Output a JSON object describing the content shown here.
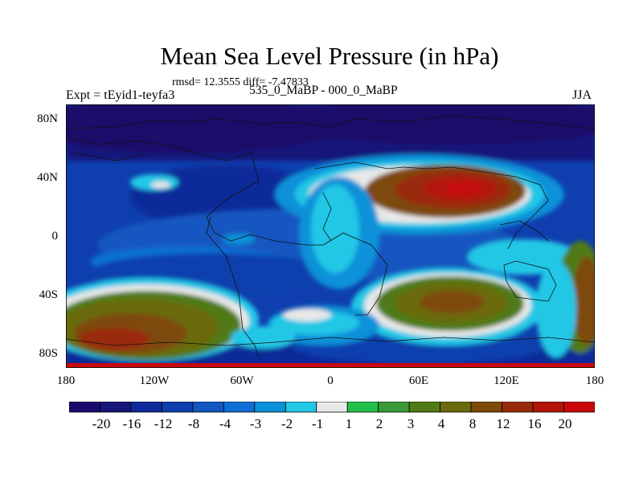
{
  "title": "Mean Sea Level Pressure (in hPa)",
  "stats": "rmsd= 12.3555 diff= -7.47833",
  "experiment": "Expt = tEyid1-teyfa3",
  "subtitle": "535_0_MaBP - 000_0_MaBP",
  "season": "JJA",
  "y_axis": {
    "ticks": [
      "80N",
      "40N",
      "0",
      "40S",
      "80S"
    ]
  },
  "x_axis": {
    "ticks": [
      "180",
      "120W",
      "60W",
      "0",
      "60E",
      "120E",
      "180"
    ]
  },
  "colorbar": {
    "colors": [
      "#1a0a6b",
      "#16167a",
      "#0f2a9a",
      "#0f3fae",
      "#1256c0",
      "#0f6fd4",
      "#0b91d8",
      "#23c7e6",
      "#e8e8e8",
      "#22c04a",
      "#3a9a3a",
      "#4f7a14",
      "#6b6a0a",
      "#7e4a07",
      "#9a2b0a",
      "#b51509",
      "#c80808"
    ],
    "labels": [
      "-20",
      "-16",
      "-12",
      "-8",
      "-4",
      "-3",
      "-2",
      "-1",
      "1",
      "2",
      "3",
      "4",
      "8",
      "12",
      "16",
      "20"
    ]
  }
}
